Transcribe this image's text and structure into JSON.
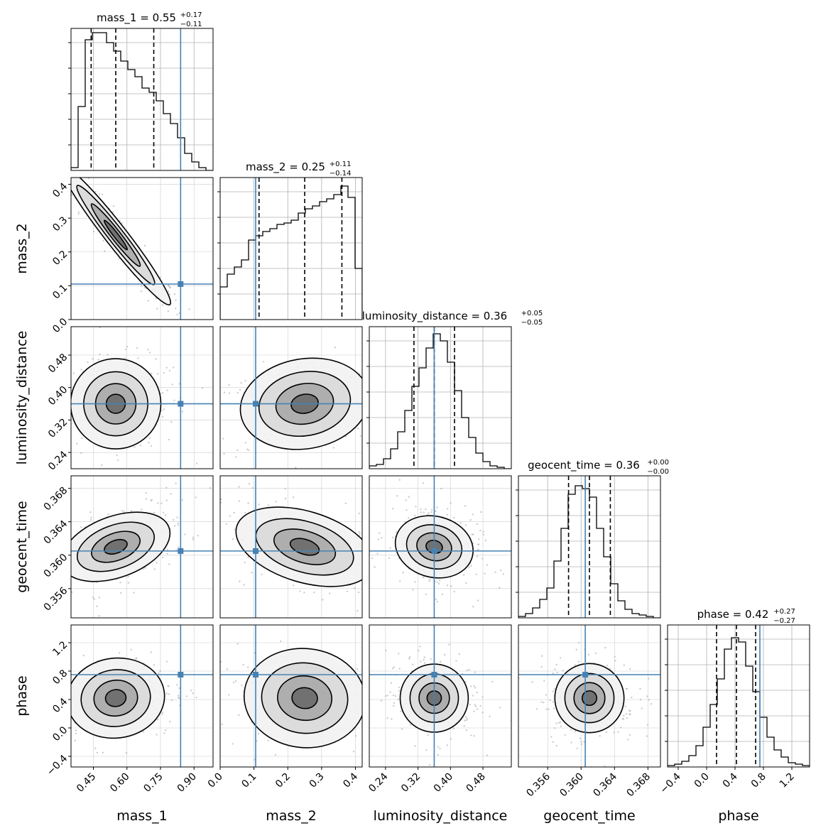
{
  "chart_data": {
    "type": "corner",
    "grid": true,
    "truth_color": "#4682b4",
    "params": [
      {
        "name": "mass_1",
        "range": [
          0.35,
          0.985
        ],
        "ticks": [
          0.45,
          0.6,
          0.75,
          0.9
        ],
        "tick_labels": [
          "0.45",
          "0.60",
          "0.75",
          "0.90"
        ],
        "truth": 0.84,
        "quantiles": [
          0.44,
          0.55,
          0.72
        ],
        "title_value": "0.55",
        "title_plus": "+0.17",
        "title_minus": "−0.11"
      },
      {
        "name": "mass_2",
        "range": [
          0.0,
          0.42
        ],
        "ticks": [
          0.0,
          0.1,
          0.2,
          0.3,
          0.4
        ],
        "tick_labels": [
          "0.0",
          "0.1",
          "0.2",
          "0.3",
          "0.4"
        ],
        "truth": 0.105,
        "quantiles": [
          0.115,
          0.25,
          0.36
        ],
        "title_value": "0.25",
        "title_plus": "+0.11",
        "title_minus": "−0.14"
      },
      {
        "name": "luminosity_distance",
        "range": [
          0.2,
          0.55
        ],
        "ticks": [
          0.24,
          0.32,
          0.4,
          0.48
        ],
        "tick_labels": [
          "0.24",
          "0.32",
          "0.40",
          "0.48"
        ],
        "truth": 0.36,
        "quantiles": [
          0.31,
          0.36,
          0.41
        ],
        "title_value": "0.36",
        "title_plus": "+0.05",
        "title_minus": "−0.05"
      },
      {
        "name": "geocent_time",
        "range": [
          0.3525,
          0.3695
        ],
        "ticks": [
          0.356,
          0.36,
          0.364,
          0.368
        ],
        "tick_labels": [
          "0.356",
          "0.360",
          "0.364",
          "0.368"
        ],
        "truth": 0.3605,
        "quantiles": [
          0.3585,
          0.361,
          0.3635
        ],
        "title_value": "0.36",
        "title_plus": "+0.00",
        "title_minus": "−0.00"
      },
      {
        "name": "phase",
        "range": [
          -0.55,
          1.45
        ],
        "ticks": [
          -0.4,
          0.0,
          0.4,
          0.8,
          1.2
        ],
        "tick_labels": [
          "−0.4",
          "0.0",
          "0.4",
          "0.8",
          "1.2"
        ],
        "truth": 0.75,
        "quantiles": [
          0.14,
          0.42,
          0.69
        ],
        "title_value": "0.42",
        "title_plus": "+0.27",
        "title_minus": "−0.27"
      }
    ],
    "histograms": [
      [
        0.02,
        0.45,
        0.92,
        0.97,
        0.97,
        0.9,
        0.84,
        0.77,
        0.71,
        0.66,
        0.58,
        0.55,
        0.49,
        0.4,
        0.33,
        0.23,
        0.12,
        0.06,
        0.02,
        0.0
      ],
      [
        0.23,
        0.32,
        0.37,
        0.42,
        0.56,
        0.59,
        0.62,
        0.64,
        0.67,
        0.68,
        0.7,
        0.75,
        0.78,
        0.8,
        0.83,
        0.85,
        0.88,
        0.94,
        0.86,
        0.36
      ],
      [
        0.02,
        0.03,
        0.07,
        0.14,
        0.26,
        0.41,
        0.58,
        0.71,
        0.85,
        0.95,
        0.9,
        0.75,
        0.55,
        0.36,
        0.22,
        0.11,
        0.05,
        0.02,
        0.01,
        0.0
      ],
      [
        0.01,
        0.03,
        0.07,
        0.13,
        0.21,
        0.4,
        0.63,
        0.87,
        0.93,
        0.91,
        0.85,
        0.63,
        0.43,
        0.24,
        0.12,
        0.06,
        0.03,
        0.02,
        0.01,
        0.0
      ],
      [
        0.01,
        0.02,
        0.04,
        0.08,
        0.15,
        0.28,
        0.44,
        0.62,
        0.83,
        0.91,
        0.88,
        0.71,
        0.53,
        0.35,
        0.21,
        0.12,
        0.07,
        0.03,
        0.02,
        0.01
      ]
    ]
  }
}
